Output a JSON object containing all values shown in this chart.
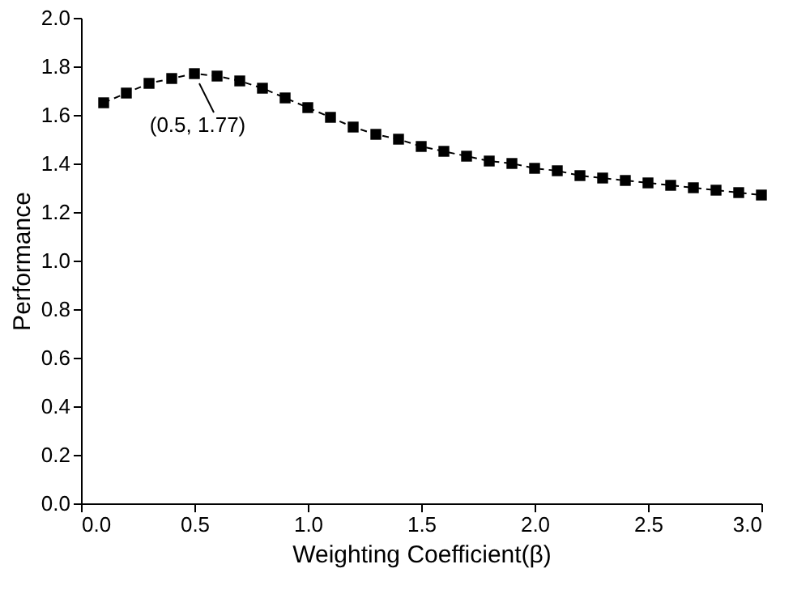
{
  "chart_data": {
    "type": "line",
    "xlabel": "Weighting Coefficient(β)",
    "ylabel": "Performance",
    "x": [
      0.1,
      0.2,
      0.3,
      0.4,
      0.5,
      0.6,
      0.7,
      0.8,
      0.9,
      1.0,
      1.1,
      1.2,
      1.3,
      1.4,
      1.5,
      1.6,
      1.7,
      1.8,
      1.9,
      2.0,
      2.1,
      2.2,
      2.3,
      2.4,
      2.5,
      2.6,
      2.7,
      2.8,
      2.9,
      3.0
    ],
    "series": [
      {
        "color": "#000000",
        "values": [
          1.65,
          1.69,
          1.73,
          1.75,
          1.77,
          1.76,
          1.74,
          1.71,
          1.67,
          1.63,
          1.59,
          1.55,
          1.52,
          1.5,
          1.47,
          1.45,
          1.43,
          1.41,
          1.4,
          1.38,
          1.37,
          1.35,
          1.34,
          1.33,
          1.32,
          1.31,
          1.3,
          1.29,
          1.28,
          1.27
        ]
      }
    ],
    "xlim": [
      0,
      3
    ],
    "xticks": [
      {
        "value": 0,
        "label": "0.0"
      },
      0.5,
      {
        "value": 1,
        "label": "1.0"
      },
      1.5,
      {
        "value": 2,
        "label": "2.0"
      },
      2.5,
      {
        "value": 3,
        "label": "3.0"
      }
    ],
    "ylim": [
      0,
      2
    ],
    "yticks": [
      {
        "value": 0,
        "label": "0.0"
      },
      0.2,
      0.4,
      0.6,
      0.8,
      {
        "value": 1,
        "label": "1.0"
      },
      1.2,
      1.4,
      1.6,
      1.8,
      {
        "value": 2,
        "label": "2.0"
      }
    ],
    "marker": "square",
    "line_style": "dashed",
    "grid": false,
    "legend": false,
    "annotations": [
      {
        "text": "(0.5, 1.77)",
        "x": 0.5,
        "y": 1.77
      }
    ]
  }
}
